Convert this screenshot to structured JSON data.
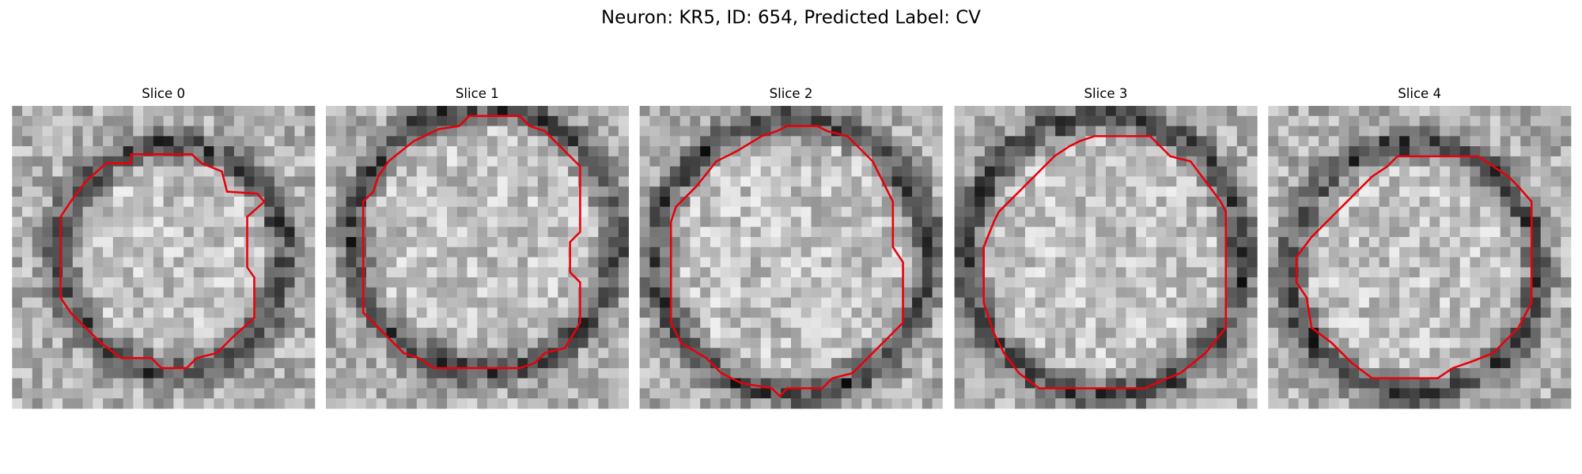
{
  "title": "Neuron: KR5, ID: 654, Predicted Label: CV",
  "panels": [
    {
      "title": "Slice 0"
    },
    {
      "title": "Slice 1"
    },
    {
      "title": "Slice 2"
    },
    {
      "title": "Slice 3"
    },
    {
      "title": "Slice 4"
    }
  ]
}
